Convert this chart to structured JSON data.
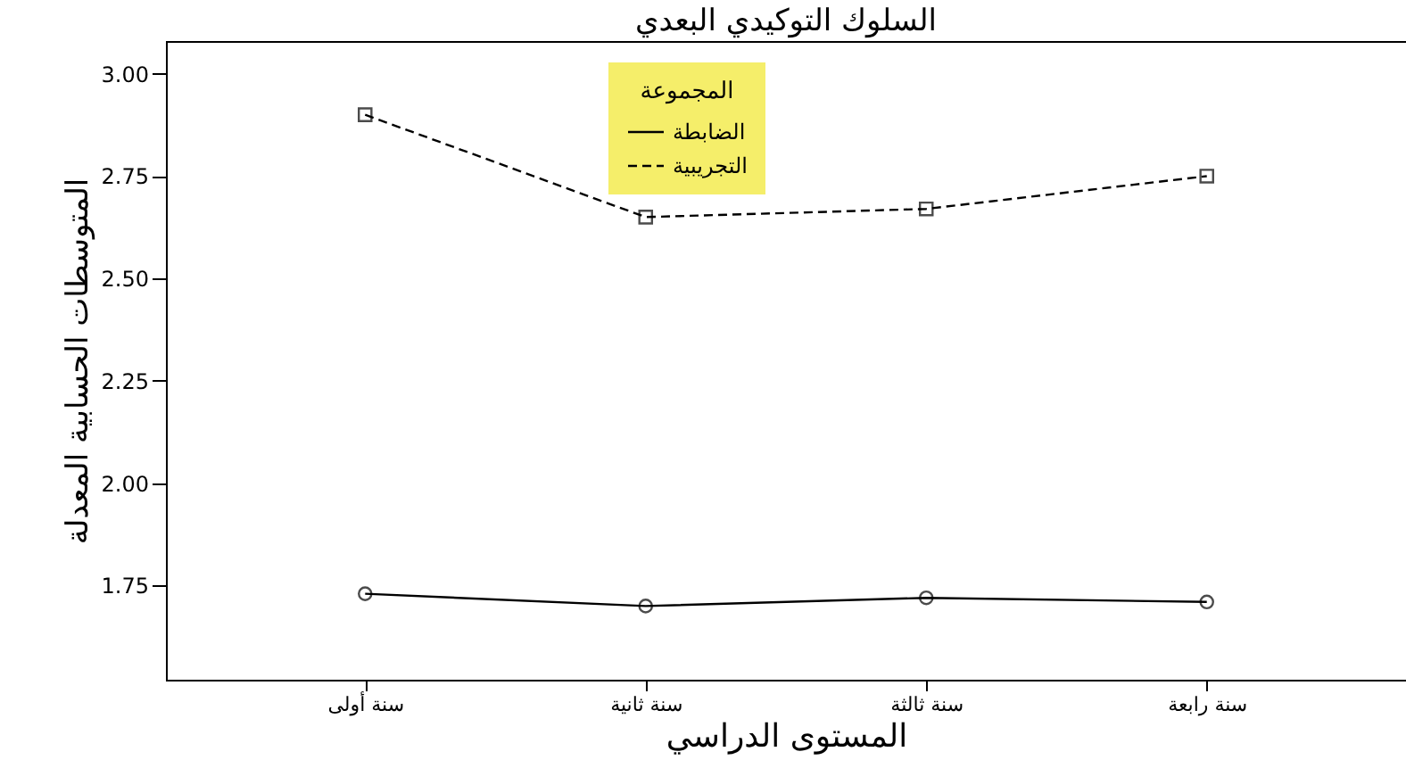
{
  "chart_data": {
    "type": "line",
    "title": "السلوك التوكيدي البعدي",
    "xlabel": "المستوى الدراسي",
    "ylabel": "المتوسطات الحسابية المعدلة",
    "legend_title": "المجموعة",
    "categories": [
      "سنة أولى",
      "سنة ثانية",
      "سنة ثالثة",
      "سنة رابعة"
    ],
    "series": [
      {
        "name": "الضابطة",
        "color": "#000000",
        "values": [
          1.73,
          1.7,
          1.72,
          1.71
        ],
        "marker": "circle",
        "line_style": "solid"
      },
      {
        "name": "التجريبية",
        "color": "#000000",
        "values": [
          2.9,
          2.65,
          2.67,
          2.75
        ],
        "marker": "square",
        "line_style": "dashed"
      }
    ],
    "ylim": [
      1.52,
      3.08
    ],
    "yticks": [
      {
        "value": 1.75,
        "label": "1.75"
      },
      {
        "value": 2.0,
        "label": "2.00"
      },
      {
        "value": 2.25,
        "label": "2.25"
      },
      {
        "value": 2.5,
        "label": "2.50"
      },
      {
        "value": 2.75,
        "label": "2.75"
      },
      {
        "value": 3.0,
        "label": "3.00"
      }
    ],
    "grid": false,
    "legend": "top"
  }
}
